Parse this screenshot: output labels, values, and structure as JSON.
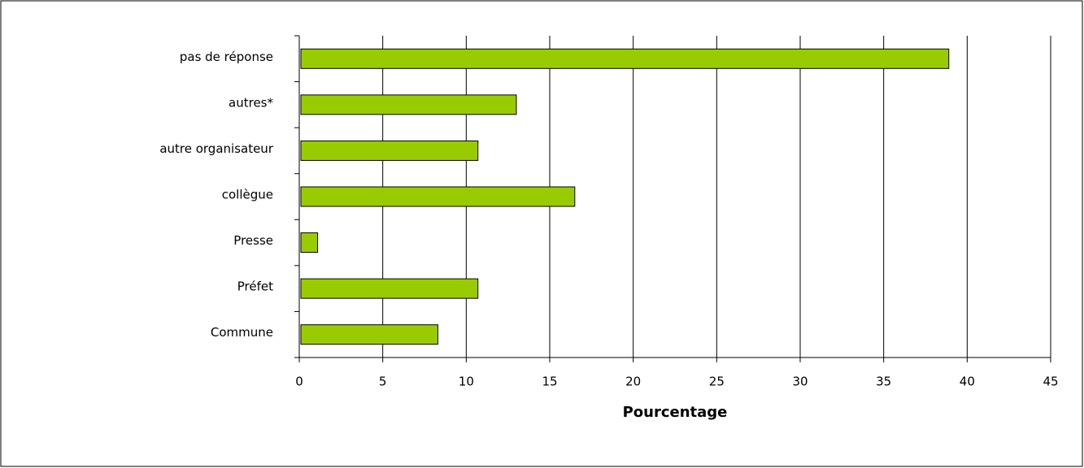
{
  "chart_data": {
    "type": "bar",
    "orientation": "horizontal",
    "categories": [
      "pas de réponse",
      "autres*",
      "autre organisateur",
      "collègue",
      "Presse",
      "Préfet",
      "Commune"
    ],
    "values": [
      38.9,
      13,
      10.7,
      16.5,
      1.1,
      10.7,
      8.3
    ],
    "color": "#99cc00",
    "xlabel": "Pourcentage",
    "xlim": [
      0,
      45
    ],
    "xticks": [
      0,
      5,
      10,
      15,
      20,
      25,
      30,
      35,
      40,
      45
    ],
    "grid": true
  }
}
